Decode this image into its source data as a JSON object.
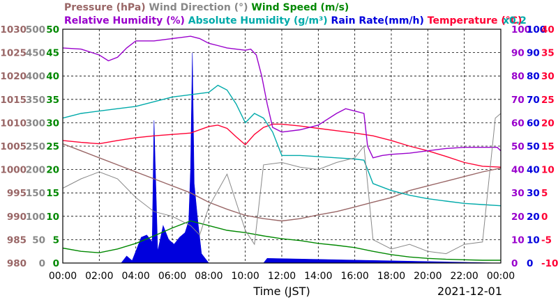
{
  "chart_data": {
    "type": "line",
    "date": "2021-12-01",
    "xlabel": "Time (JST)",
    "x_ticks": [
      "00:00",
      "02:00",
      "04:00",
      "06:00",
      "08:00",
      "10:00",
      "12:00",
      "14:00",
      "16:00",
      "18:00",
      "20:00",
      "22:00",
      "00:00"
    ],
    "legend": [
      {
        "text": "Pressure (hPa)",
        "color": "#996666",
        "row": 1
      },
      {
        "text": "Wind Direction (°)",
        "color": "#888888",
        "row": 1
      },
      {
        "text": "Wind Speed (m/s)",
        "color": "#008800",
        "row": 1
      },
      {
        "text": "Relative Humidity (%)",
        "color": "#9900cc",
        "row": 2
      },
      {
        "text": "Absolute Humidity (g/m³)",
        "color": "#00aaaa",
        "row": 2
      },
      {
        "text": "Rain Rate(mm/h)",
        "color": "#0000dd",
        "row": 2
      },
      {
        "text": "Temperature (°C)",
        "color": "#ff0033",
        "row": 2
      },
      {
        "text": "x0.2",
        "color": "#00aaaa",
        "row": 2
      }
    ],
    "axes": {
      "pressure": {
        "color": "#996666",
        "ticks": [
          "1030",
          "1025",
          "1020",
          "1015",
          "1010",
          "1005",
          "1000",
          "995",
          "990",
          "985",
          "980"
        ],
        "range": [
          980,
          1030
        ]
      },
      "wind_direction": {
        "color": "#888888",
        "ticks": [
          "500",
          "450",
          "400",
          "350",
          "300",
          "250",
          "200",
          "150",
          "100",
          "50",
          "0"
        ],
        "range": [
          0,
          500
        ]
      },
      "wind_speed": {
        "color": "#008800",
        "ticks": [
          "50",
          "45",
          "40",
          "35",
          "30",
          "25",
          "20",
          "15",
          "10",
          "5",
          "0"
        ],
        "range": [
          0,
          50
        ]
      },
      "relative_humidity": {
        "color": "#9900cc",
        "ticks": [
          "100",
          "90",
          "80",
          "70",
          "60",
          "50",
          "40",
          "30",
          "20",
          "10",
          "0"
        ],
        "range": [
          0,
          100
        ]
      },
      "rain_rate": {
        "color": "#0000dd",
        "ticks": [
          "100",
          "90",
          "80",
          "70",
          "60",
          "50",
          "40",
          "30",
          "20",
          "10",
          "0"
        ],
        "range": [
          0,
          100
        ]
      },
      "temperature": {
        "color": "#ff0033",
        "ticks": [
          "40",
          "35",
          "30",
          "25",
          "20",
          "15",
          "10",
          "5",
          "0",
          "-5",
          "-10"
        ],
        "range": [
          -10,
          40
        ]
      }
    },
    "grid": true,
    "series": [
      {
        "name": "Pressure (hPa)",
        "color": "#996666",
        "axis": "pressure",
        "x": [
          0,
          1,
          2,
          3,
          4,
          5,
          6,
          7,
          8,
          9,
          10,
          11,
          12,
          13,
          14,
          15,
          16,
          17,
          18,
          19,
          20,
          21,
          22,
          23,
          24
        ],
        "y": [
          1005.5,
          1004,
          1002.5,
          1001,
          999.5,
          998,
          996.5,
          995,
          993,
          991.5,
          990.2,
          989.5,
          989,
          989.5,
          990.3,
          991,
          992,
          993,
          994,
          995.5,
          996.5,
          997.5,
          998.5,
          999.5,
          1000.3
        ]
      },
      {
        "name": "Temperature (°C)",
        "color": "#ff0033",
        "axis": "temperature",
        "x": [
          0,
          1,
          2,
          3,
          4,
          5,
          6,
          7,
          8,
          8.5,
          9,
          9.5,
          10,
          10.5,
          11,
          11.5,
          12,
          13,
          14,
          15,
          16,
          17,
          18,
          19,
          20,
          21,
          22,
          23,
          24
        ],
        "y": [
          16.2,
          15.8,
          15.5,
          16.2,
          16.8,
          17.2,
          17.5,
          17.8,
          19.2,
          19.5,
          18.8,
          17,
          15.3,
          17.5,
          19,
          19.7,
          19.7,
          19.3,
          18.8,
          18.3,
          17.8,
          17.2,
          16.2,
          15,
          14,
          12.8,
          11.5,
          10.7,
          10.5
        ]
      },
      {
        "name": "Relative Humidity (%)",
        "color": "#9900cc",
        "axis": "relative_humidity",
        "x": [
          0,
          1,
          2,
          2.5,
          3,
          3.5,
          4,
          5,
          6,
          7,
          7.5,
          8,
          8.5,
          9,
          9.5,
          10,
          10.3,
          10.6,
          10.9,
          11.2,
          11.5,
          12,
          13,
          14,
          15,
          15.5,
          16,
          16.5,
          16.7,
          17,
          17.5,
          18,
          19,
          20,
          21,
          22,
          23,
          23.8,
          24
        ],
        "y": [
          92,
          91.5,
          89,
          86.5,
          88,
          92,
          95,
          95,
          96,
          97,
          96,
          94,
          93,
          92,
          91.5,
          91,
          91.5,
          89,
          80,
          68,
          58,
          56,
          57,
          59,
          64,
          66,
          65,
          64,
          50,
          45,
          46,
          46.5,
          47,
          48,
          49,
          49.5,
          49.5,
          49.5,
          48
        ]
      },
      {
        "name": "Absolute Humidity (g/m³)",
        "color": "#00aaaa",
        "axis": "relative_humidity",
        "x": [
          0,
          1,
          2,
          3,
          4,
          5,
          6,
          7,
          8,
          8.5,
          9,
          9.5,
          10,
          10.5,
          11,
          11.5,
          12,
          13,
          14,
          15,
          16,
          16.5,
          17,
          18,
          19,
          20,
          21,
          22,
          23,
          24
        ],
        "y": [
          62,
          64,
          65,
          66,
          67,
          69,
          71,
          72,
          73,
          76,
          74,
          68,
          60,
          64,
          62,
          56,
          46,
          46,
          45.5,
          45,
          44.5,
          44,
          34,
          31,
          29,
          27.5,
          26.5,
          25.5,
          25,
          24.5
        ]
      },
      {
        "name": "Wind Speed (m/s)",
        "color": "#008800",
        "axis": "wind_speed",
        "x": [
          0,
          1,
          2,
          3,
          4,
          5,
          6,
          7,
          8,
          9,
          10,
          11,
          12,
          13,
          14,
          15,
          16,
          17,
          18,
          19,
          20,
          21,
          22,
          23,
          24
        ],
        "y": [
          3.2,
          2.5,
          2.2,
          3,
          4.2,
          5.8,
          7.5,
          9,
          8,
          7,
          6.5,
          5.8,
          5.2,
          4.8,
          4.2,
          3.8,
          3.3,
          2.5,
          1.8,
          1.3,
          1,
          0.8,
          0.7,
          0.6,
          0.6
        ]
      },
      {
        "name": "Rain Rate(mm/h)",
        "color": "#0000dd",
        "axis": "rain_rate",
        "x": [
          0,
          3.2,
          3.5,
          3.8,
          4,
          4.3,
          4.6,
          4.9,
          5,
          5.2,
          5.5,
          5.8,
          6.1,
          6.4,
          6.7,
          6.9,
          7,
          7.1,
          7.2,
          7.4,
          7.6,
          8,
          9.5,
          11,
          11.2,
          24
        ],
        "y": [
          0,
          0,
          3,
          1,
          5,
          11,
          12,
          9,
          61,
          5,
          16,
          10,
          8,
          11,
          13,
          18,
          40,
          90,
          34,
          18,
          4,
          0,
          0,
          0,
          2,
          0
        ]
      },
      {
        "name": "Wind Direction (°)",
        "color": "#888888",
        "axis": "wind_direction",
        "x": [
          0,
          1,
          2,
          3,
          4,
          5,
          6,
          7,
          7.5,
          8,
          9,
          10,
          10.5,
          11,
          12,
          13,
          14,
          15,
          16,
          16.5,
          17,
          18,
          19,
          20,
          21,
          22,
          23,
          23.7,
          24
        ],
        "y": [
          160,
          180,
          195,
          180,
          140,
          110,
          100,
          80,
          60,
          120,
          190,
          70,
          40,
          210,
          215,
          205,
          200,
          215,
          225,
          250,
          50,
          30,
          40,
          25,
          20,
          40,
          45,
          310,
          320
        ]
      }
    ]
  }
}
